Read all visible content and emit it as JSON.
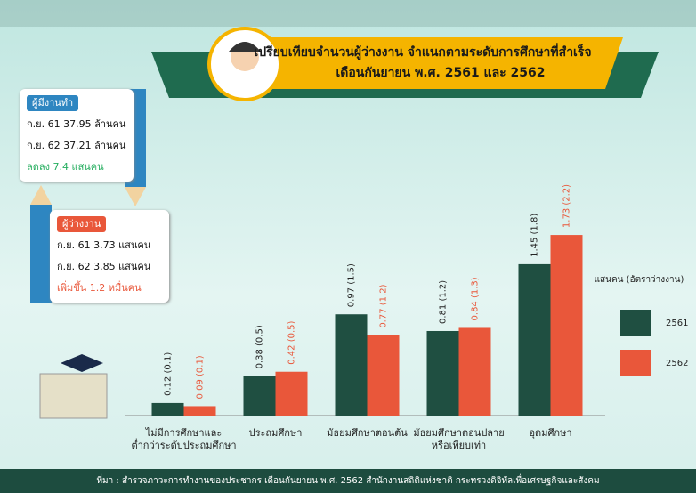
{
  "chart_data": {
    "type": "bar",
    "title": "เปรียบเทียบจำนวนผู้ว่างงาน จำแนกตามระดับการศึกษาที่สำเร็จ",
    "subtitle": "เดือนกันยายน พ.ศ. 2561 และ 2562",
    "y_label": "แสนคน (อัตราว่างงาน)",
    "categories": [
      "ไม่มีการศึกษาและ\nต่ำกว่าระดับประถมศึกษา",
      "ประถมศึกษา",
      "มัธยมศึกษาตอนต้น",
      "มัธยมศึกษาตอนปลาย\nหรือเทียบเท่า",
      "อุดมศึกษา"
    ],
    "series": [
      {
        "name": "2561",
        "color": "#1f4f41",
        "values": [
          0.12,
          0.38,
          0.97,
          0.81,
          1.45
        ],
        "value_labels": [
          "0.12 (0.1)",
          "0.38 (0.5)",
          "0.97 (1.5)",
          "0.81 (1.2)",
          "1.45 (1.8)"
        ]
      },
      {
        "name": "2562",
        "color": "#e9573a",
        "values": [
          0.09,
          0.42,
          0.77,
          0.84,
          1.73
        ],
        "value_labels": [
          "0.09 (0.1)",
          "0.42 (0.5)",
          "0.77 (1.2)",
          "0.84 (1.3)",
          "1.73 (2.2)"
        ]
      }
    ],
    "ylim": [
      0,
      1.85
    ],
    "source": "ที่มา : สำรวจภาวะการทำงานของประชากร เดือนกันยายน พ.ศ. 2562 สำนักงานสถิติแห่งชาติ กระทรวงดิจิทัลเพื่อเศรษฐกิจและสังคม"
  },
  "panels": [
    {
      "title": "ผู้มีงานทำ",
      "lines": [
        "ก.ย. 61 37.95 ล้านคน",
        "ก.ย. 62 37.21 ล้านคน"
      ],
      "change": "ลดลง 7.4 แสนคน"
    },
    {
      "title": "ผู้ว่างงาน",
      "lines": [
        "ก.ย. 61 3.73 แสนคน",
        "ก.ย. 62 3.85 แสนคน"
      ],
      "change": "เพิ่มขึ้น 1.2 หมื่นคน"
    }
  ]
}
